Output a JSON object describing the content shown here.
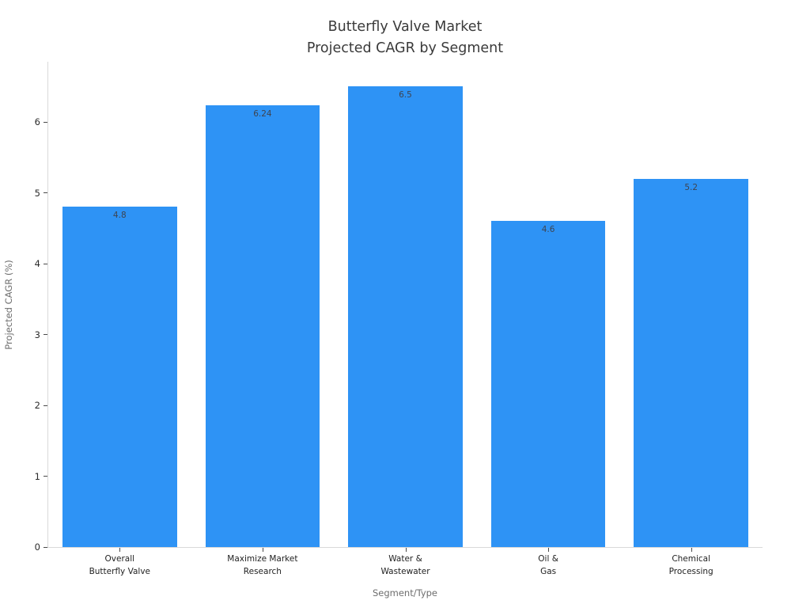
{
  "chart_data": {
    "type": "bar",
    "title": "Butterfly Valve Market",
    "subtitle": "Projected CAGR by Segment",
    "categories": [
      [
        "Overall",
        "Butterfly Valve"
      ],
      [
        "Maximize Market",
        "Research"
      ],
      [
        "Water &",
        "Wastewater"
      ],
      [
        "Oil &",
        "Gas"
      ],
      [
        "Chemical",
        "Processing"
      ]
    ],
    "values": [
      4.8,
      6.24,
      6.5,
      4.6,
      5.2
    ],
    "value_labels": [
      "4.8",
      "6.24",
      "6.5",
      "4.6",
      "5.2"
    ],
    "xlabel": "Segment/Type",
    "ylabel": "Projected CAGR (%)",
    "ylim": [
      0,
      6.85
    ],
    "yticks": [
      "0",
      "1",
      "2",
      "3",
      "4",
      "5",
      "6"
    ],
    "grid": false,
    "legend_position": "none",
    "bar_color": "#2e93f5",
    "spine_color": "#d9d9d9",
    "tick_color": "#4a4a4a",
    "title_color": "#3a3a3a",
    "axis_title_color": "#6e6e6e",
    "bar_label_color": "#3e4450"
  }
}
